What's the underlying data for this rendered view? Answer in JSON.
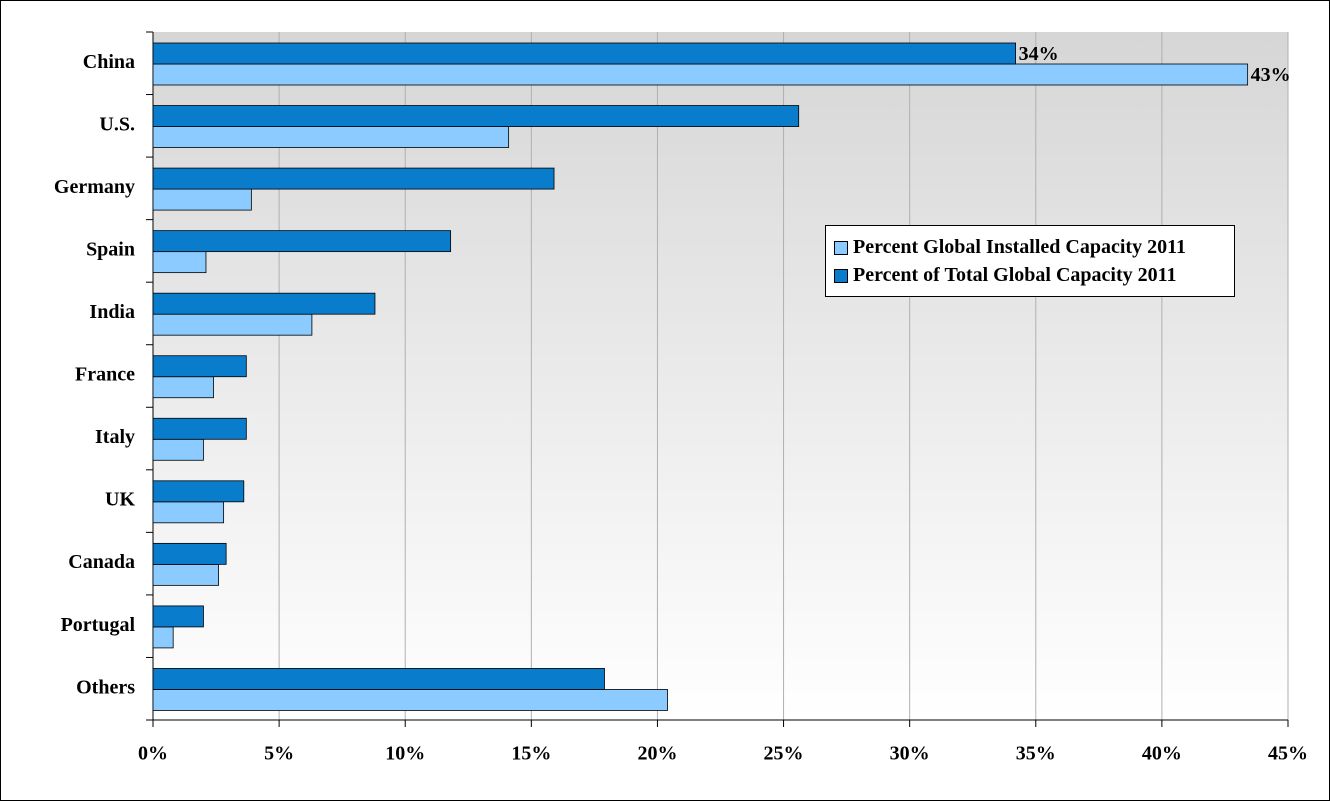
{
  "chart_data": {
    "type": "barh",
    "categories": [
      "China",
      "U.S.",
      "Germany",
      "Spain",
      "India",
      "France",
      "Italy",
      "UK",
      "Canada",
      "Portugal",
      "Others"
    ],
    "series": [
      {
        "name": "Percent Global Installed Capacity 2011",
        "color": "#8ccbff",
        "values": [
          43.4,
          14.1,
          3.9,
          2.1,
          6.3,
          2.4,
          2.0,
          2.8,
          2.6,
          0.8,
          20.4
        ],
        "value_labels": [
          "43%",
          null,
          null,
          null,
          null,
          null,
          null,
          null,
          null,
          null,
          null
        ]
      },
      {
        "name": "Percent of Total Global Capacity 2011",
        "color": "#0a7ccc",
        "values": [
          34.2,
          25.6,
          15.9,
          11.8,
          8.8,
          3.7,
          3.7,
          3.6,
          2.9,
          2.0,
          17.9
        ],
        "value_labels": [
          "34%",
          null,
          null,
          null,
          null,
          null,
          null,
          null,
          null,
          null,
          null
        ]
      }
    ],
    "xlim": [
      0,
      45
    ],
    "xticks": [
      {
        "value": 0,
        "label": "0%"
      },
      {
        "value": 5,
        "label": "5%"
      },
      {
        "value": 10,
        "label": "10%"
      },
      {
        "value": 15,
        "label": "15%"
      },
      {
        "value": 20,
        "label": "20%"
      },
      {
        "value": 25,
        "label": "25%"
      },
      {
        "value": 30,
        "label": "30%"
      },
      {
        "value": 35,
        "label": "35%"
      },
      {
        "value": 40,
        "label": "40%"
      },
      {
        "value": 45,
        "label": "45%"
      }
    ],
    "grid": true,
    "legend": "right"
  }
}
